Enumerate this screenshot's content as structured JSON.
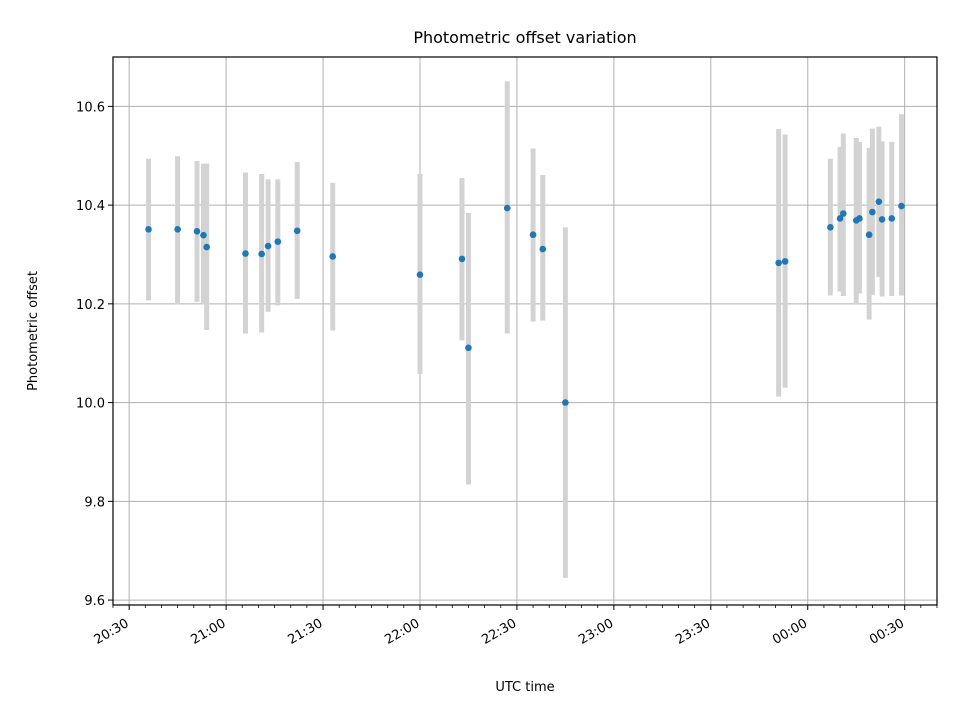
{
  "chart_data": {
    "type": "scatter",
    "title": "Photometric offset variation",
    "xlabel": "UTC time",
    "ylabel": "Photometric offset",
    "grid": true,
    "x_tick_labels": [
      "20:30",
      "21:00",
      "21:30",
      "22:00",
      "22:30",
      "23:00",
      "23:30",
      "00:00",
      "00:30"
    ],
    "y_tick_labels": [
      "9.6",
      "9.8",
      "10.0",
      "10.2",
      "10.4",
      "10.6"
    ],
    "y_ticks": [
      9.6,
      9.8,
      10.0,
      10.2,
      10.4,
      10.6
    ],
    "ylim": [
      9.59,
      10.7
    ],
    "xlim_minutes_from_2030": [
      -5,
      250
    ],
    "x_tick_minutes_from_2030": [
      0,
      30,
      60,
      90,
      120,
      150,
      180,
      210,
      240
    ],
    "point_color": "#1f77b4",
    "errorbar_color": "#d3d3d3",
    "series": [
      {
        "points": [
          {
            "x": "20:36",
            "y": 10.351,
            "ylo": 10.207,
            "yhi": 10.494
          },
          {
            "x": "20:45",
            "y": 10.351,
            "ylo": 10.199,
            "yhi": 10.499
          },
          {
            "x": "20:51",
            "y": 10.347,
            "ylo": 10.204,
            "yhi": 10.489
          },
          {
            "x": "20:53",
            "y": 10.339,
            "ylo": 10.199,
            "yhi": 10.484
          },
          {
            "x": "20:54",
            "y": 10.315,
            "ylo": 10.147,
            "yhi": 10.484
          },
          {
            "x": "21:06",
            "y": 10.302,
            "ylo": 10.14,
            "yhi": 10.466
          },
          {
            "x": "21:11",
            "y": 10.301,
            "ylo": 10.142,
            "yhi": 10.463
          },
          {
            "x": "21:13",
            "y": 10.317,
            "ylo": 10.184,
            "yhi": 10.452
          },
          {
            "x": "21:16",
            "y": 10.326,
            "ylo": 10.197,
            "yhi": 10.452
          },
          {
            "x": "21:22",
            "y": 10.348,
            "ylo": 10.21,
            "yhi": 10.487
          },
          {
            "x": "21:33",
            "y": 10.296,
            "ylo": 10.146,
            "yhi": 10.445
          },
          {
            "x": "22:00",
            "y": 10.259,
            "ylo": 10.058,
            "yhi": 10.463
          },
          {
            "x": "22:13",
            "y": 10.291,
            "ylo": 10.126,
            "yhi": 10.455
          },
          {
            "x": "22:15",
            "y": 10.111,
            "ylo": 9.834,
            "yhi": 10.384
          },
          {
            "x": "22:27",
            "y": 10.394,
            "ylo": 10.14,
            "yhi": 10.651
          },
          {
            "x": "22:35",
            "y": 10.34,
            "ylo": 10.164,
            "yhi": 10.515
          },
          {
            "x": "22:38",
            "y": 10.311,
            "ylo": 10.166,
            "yhi": 10.461
          },
          {
            "x": "22:45",
            "y": 10.0,
            "ylo": 9.645,
            "yhi": 10.355
          },
          {
            "x": "23:51",
            "y": 10.283,
            "ylo": 10.012,
            "yhi": 10.554
          },
          {
            "x": "23:53",
            "y": 10.286,
            "ylo": 10.03,
            "yhi": 10.543
          },
          {
            "x": "00:07",
            "y": 10.355,
            "ylo": 10.217,
            "yhi": 10.494
          },
          {
            "x": "00:10",
            "y": 10.373,
            "ylo": 10.225,
            "yhi": 10.518
          },
          {
            "x": "00:11",
            "y": 10.383,
            "ylo": 10.216,
            "yhi": 10.545
          },
          {
            "x": "00:15",
            "y": 10.369,
            "ylo": 10.202,
            "yhi": 10.536
          },
          {
            "x": "00:16",
            "y": 10.373,
            "ylo": 10.221,
            "yhi": 10.528
          },
          {
            "x": "00:19",
            "y": 10.34,
            "ylo": 10.168,
            "yhi": 10.516
          },
          {
            "x": "00:20",
            "y": 10.386,
            "ylo": 10.218,
            "yhi": 10.555
          },
          {
            "x": "00:22",
            "y": 10.407,
            "ylo": 10.254,
            "yhi": 10.559
          },
          {
            "x": "00:23",
            "y": 10.371,
            "ylo": 10.215,
            "yhi": 10.529
          },
          {
            "x": "00:26",
            "y": 10.373,
            "ylo": 10.216,
            "yhi": 10.528
          },
          {
            "x": "00:29",
            "y": 10.398,
            "ylo": 10.217,
            "yhi": 10.584
          }
        ]
      }
    ]
  }
}
